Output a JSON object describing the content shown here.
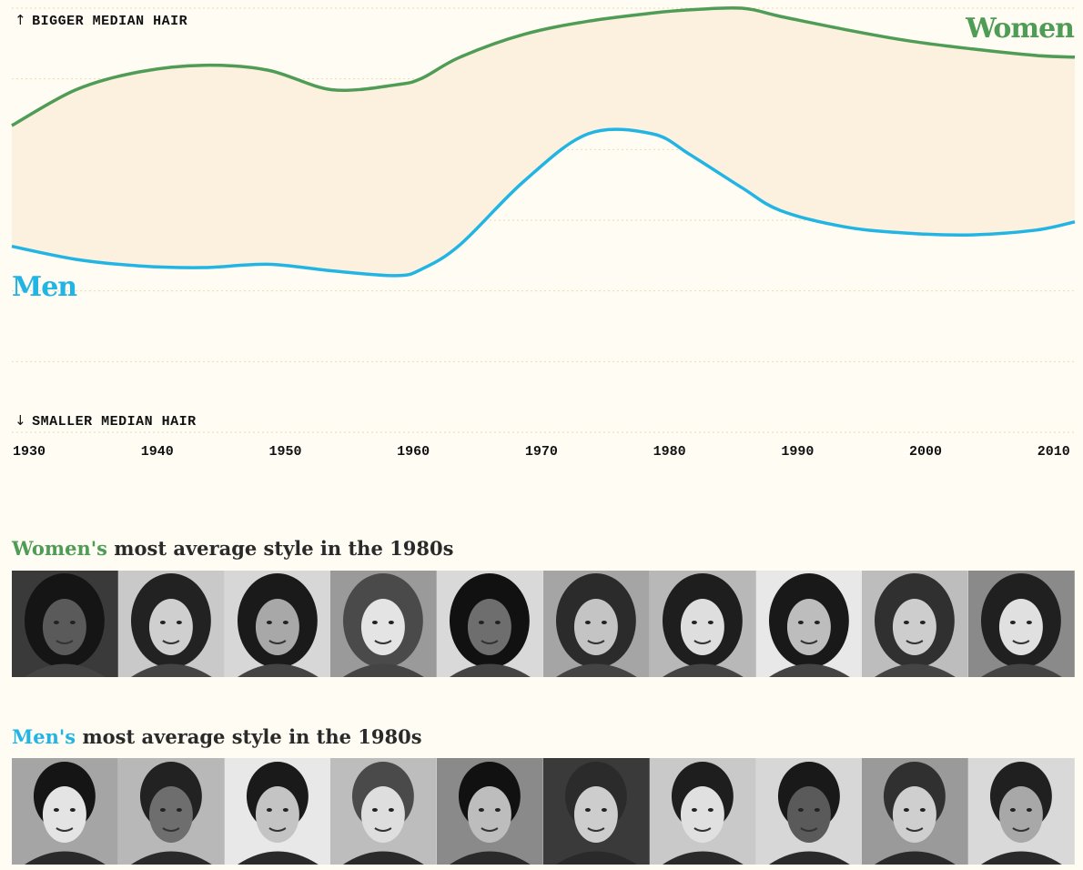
{
  "chart_data": {
    "type": "line",
    "x": [
      1930,
      1935,
      1940,
      1945,
      1950,
      1955,
      1960,
      1962,
      1965,
      1970,
      1975,
      1980,
      1983,
      1987,
      1990,
      1995,
      2000,
      2005,
      2010,
      2013
    ],
    "series": [
      {
        "name": "Women",
        "color": "#4f9c56",
        "values": [
          0.38,
          0.6,
          0.71,
          0.75,
          0.72,
          0.6,
          0.63,
          0.67,
          0.8,
          0.94,
          1.02,
          1.07,
          1.09,
          1.1,
          1.05,
          0.97,
          0.9,
          0.85,
          0.81,
          0.8
        ]
      },
      {
        "name": "Men",
        "color": "#22b5e4",
        "values": [
          -0.36,
          -0.44,
          -0.48,
          -0.49,
          -0.47,
          -0.51,
          -0.54,
          -0.5,
          -0.35,
          0.04,
          0.33,
          0.33,
          0.2,
          0.0,
          -0.14,
          -0.24,
          -0.28,
          -0.29,
          -0.26,
          -0.21
        ]
      }
    ],
    "ylim": [
      -1.5,
      1.1
    ],
    "xlim": [
      1930,
      2013
    ],
    "x_ticks": [
      "1930",
      "1940",
      "1950",
      "1960",
      "1970",
      "1980",
      "1990",
      "2000",
      "2010"
    ],
    "y_top_label": "BIGGER MEDIAN HAIR",
    "y_bottom_label": "SMALLER MEDIAN HAIR",
    "band_fill": "#fcf0de",
    "grid": true
  },
  "women_section": {
    "highlight": "Women's",
    "rest": " most average style in the 1980s",
    "color": "#4f9c56",
    "photos": [
      "portrait-1",
      "portrait-2",
      "portrait-3",
      "portrait-4",
      "portrait-5",
      "portrait-6",
      "portrait-7",
      "portrait-8",
      "portrait-9",
      "portrait-10"
    ]
  },
  "men_section": {
    "highlight": "Men's",
    "rest": " most average style in the 1980s",
    "color": "#22b5e4",
    "photos": [
      "portrait-1",
      "portrait-2",
      "portrait-3",
      "portrait-4",
      "portrait-5",
      "portrait-6",
      "portrait-7",
      "portrait-8",
      "portrait-9",
      "portrait-10"
    ]
  }
}
